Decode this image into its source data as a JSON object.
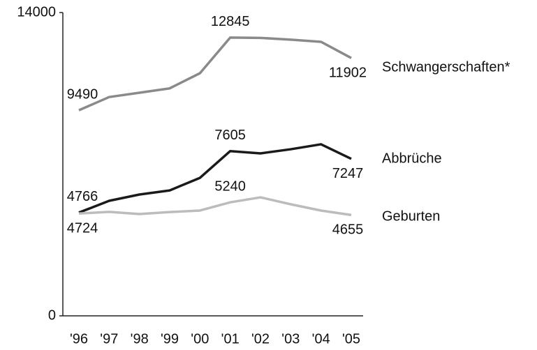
{
  "chart_data": {
    "type": "line",
    "categories": [
      "'96",
      "'97",
      "'98",
      "'99",
      "'00",
      "'01",
      "'02",
      "'03",
      "'04",
      "'05"
    ],
    "ylim": [
      0,
      14000
    ],
    "yticks": [
      0,
      14000
    ],
    "grid": false,
    "series": [
      {
        "name": "Schwangerschaften*",
        "color": "#8a8a8a",
        "values": [
          9490,
          10100,
          10300,
          10500,
          11200,
          12845,
          12830,
          12750,
          12650,
          11902
        ],
        "value_labels": [
          "9490",
          null,
          null,
          null,
          null,
          "12845",
          null,
          null,
          null,
          "11902"
        ]
      },
      {
        "name": "Abbrüche",
        "color": "#1a1a1a",
        "values": [
          4766,
          5310,
          5600,
          5790,
          6370,
          7605,
          7500,
          7690,
          7920,
          7247
        ],
        "value_labels": [
          "4766",
          null,
          null,
          null,
          null,
          "7605",
          null,
          null,
          null,
          "7247"
        ]
      },
      {
        "name": "Geburten",
        "color": "#bcbcbc",
        "values": [
          4724,
          4800,
          4700,
          4790,
          4860,
          5240,
          5470,
          5150,
          4860,
          4655
        ],
        "value_labels": [
          "4724",
          null,
          null,
          null,
          null,
          "5240",
          null,
          null,
          null,
          "4655"
        ]
      }
    ]
  }
}
